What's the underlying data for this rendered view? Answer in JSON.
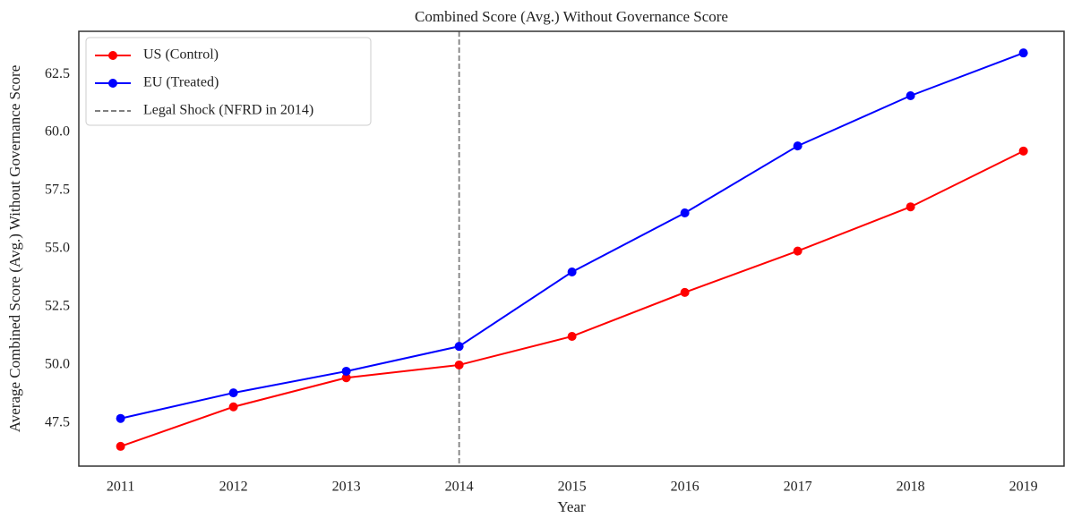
{
  "chart_data": {
    "type": "line",
    "title": "Combined Score (Avg.) Without Governance Score",
    "xlabel": "Year",
    "ylabel": "Average Combined Score (Avg.) Without Governance Score",
    "x": [
      2011,
      2012,
      2013,
      2014,
      2015,
      2016,
      2017,
      2018,
      2019
    ],
    "series": [
      {
        "name": "US (Control)",
        "color": "#ff0000",
        "values": [
          46.5,
          48.2,
          49.45,
          50.0,
          51.23,
          53.12,
          54.9,
          56.8,
          59.2
        ]
      },
      {
        "name": "EU (Treated)",
        "color": "#0000ff",
        "values": [
          47.7,
          48.8,
          49.73,
          50.8,
          54.0,
          56.54,
          59.42,
          61.58,
          63.42
        ]
      }
    ],
    "vline": {
      "x": 2014,
      "name": "Legal Shock (NFRD in 2014)",
      "color": "#808080"
    },
    "xlim": [
      2010.63,
      2019.36
    ],
    "xticks": [
      2011,
      2012,
      2013,
      2014,
      2015,
      2016,
      2017,
      2018,
      2019
    ],
    "ylim": [
      45.65,
      64.35
    ],
    "yticks": [
      47.5,
      {
        "value": 50,
        "label": "50.0"
      },
      52.5,
      {
        "value": 55,
        "label": "55.0"
      },
      57.5,
      {
        "value": 60,
        "label": "60.0"
      },
      62.5
    ],
    "grid": false,
    "legend": "upper left"
  }
}
